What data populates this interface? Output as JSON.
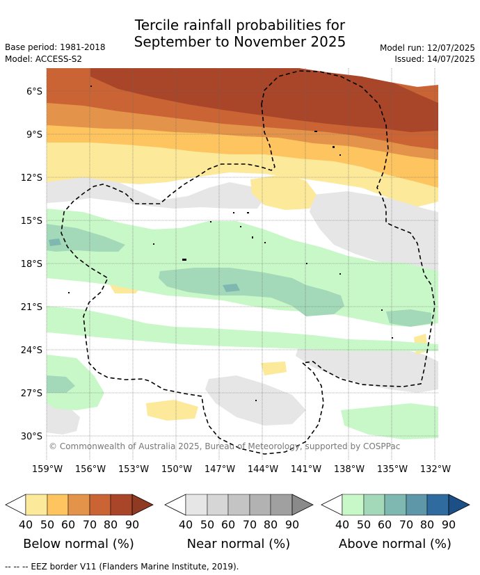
{
  "title_line1": "Tercile rainfall probabilities for",
  "title_line2": "September to November 2025",
  "base_period": "Base period: 1981-2018",
  "model": "Model: ACCESS-S2",
  "model_run": "Model run: 12/07/2025",
  "issued": "Issued: 14/07/2025",
  "copyright": "© Commonwealth of Australia 2025, Bureau of Meteorology, supported by COSPPac",
  "lat_labels": [
    "6°S",
    "9°S",
    "12°S",
    "15°S",
    "18°S",
    "21°S",
    "24°S",
    "27°S",
    "30°S"
  ],
  "lon_labels": [
    "159°W",
    "156°W",
    "153°W",
    "150°W",
    "147°W",
    "144°W",
    "141°W",
    "138°W",
    "135°W",
    "132°W"
  ],
  "legends": [
    {
      "title": "Below normal (%)",
      "ticks": [
        "40",
        "50",
        "60",
        "70",
        "80",
        "90"
      ],
      "colors": [
        "#ffffff",
        "#fde99a",
        "#fdc45f",
        "#e3944a",
        "#cb6434",
        "#a9462a",
        "#8f3a22"
      ]
    },
    {
      "title": "Near normal (%)",
      "ticks": [
        "40",
        "50",
        "60",
        "70",
        "80",
        "90"
      ],
      "colors": [
        "#ffffff",
        "#e6e6e6",
        "#d6d6d6",
        "#c4c4c4",
        "#b2b2b2",
        "#a0a0a0",
        "#8a8a8a"
      ]
    },
    {
      "title": "Above normal (%)",
      "ticks": [
        "40",
        "50",
        "60",
        "70",
        "80",
        "90"
      ],
      "colors": [
        "#ffffff",
        "#c8f7c8",
        "#a3d8b8",
        "#7fb8b0",
        "#5d97a8",
        "#2f6b9f",
        "#1c4f86"
      ]
    }
  ],
  "footer": "--  --  -- EEZ border V11 (Flanders Marine Institute, 2019)."
}
